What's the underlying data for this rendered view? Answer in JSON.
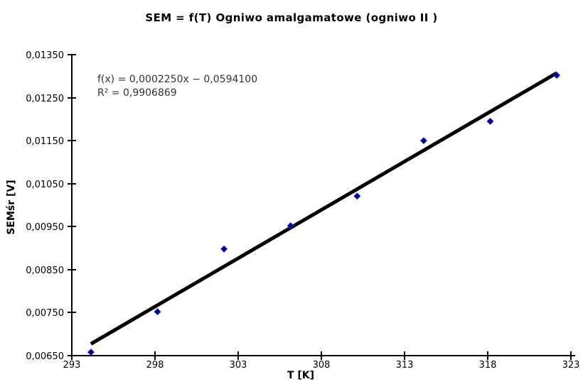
{
  "title": "SEM = f(T) Ogniwo amalgamatowe (ogniwo II )",
  "annotation": {
    "equation": "f(x) = 0,0002250x − 0,0594100",
    "r_squared": "R² = 0,9906869"
  },
  "axes": {
    "x_label": "T [K]",
    "y_label": "SEMśr [V]"
  },
  "chart_data": {
    "type": "scatter",
    "title": "SEM = f(T) Ogniwo amalgamatowe (ogniwo II )",
    "xlabel": "T [K]",
    "ylabel": "SEMśr [V]",
    "xlim": [
      293,
      323
    ],
    "ylim": [
      0.0065,
      0.0135
    ],
    "grid": false,
    "legend": null,
    "x_ticks": [
      293,
      298,
      303,
      308,
      313,
      318,
      323
    ],
    "x_tick_labels": [
      "293",
      "298",
      "303",
      "308",
      "313",
      "318",
      "323"
    ],
    "y_ticks": [
      0.0135,
      0.0125,
      0.0115,
      0.0105,
      0.0095,
      0.0085,
      0.0075,
      0.0065
    ],
    "y_tick_labels": [
      "0,01350",
      "0,01250",
      "0,01150",
      "0,01050",
      "0,00950",
      "0,00850",
      "0,00750",
      "0,00650"
    ],
    "points": [
      {
        "x": 294.15,
        "y": 0.00658
      },
      {
        "x": 298.15,
        "y": 0.00752
      },
      {
        "x": 302.15,
        "y": 0.00898
      },
      {
        "x": 306.15,
        "y": 0.00952
      },
      {
        "x": 310.15,
        "y": 0.01021
      },
      {
        "x": 314.15,
        "y": 0.0115
      },
      {
        "x": 318.15,
        "y": 0.01195
      },
      {
        "x": 322.15,
        "y": 0.01302
      }
    ],
    "trendline": {
      "slope": 0.000225,
      "intercept": -0.05941,
      "r_squared": 0.9906869,
      "x_start": 294.15,
      "x_end": 322.15
    },
    "marker": {
      "shape": "diamond",
      "color": "#000087",
      "edge_color": "#3434c8",
      "size": 9
    },
    "colors": {
      "trendline": "#000000",
      "axis": "#000000",
      "background": "#ffffff",
      "annotation_text": "#333333"
    }
  }
}
